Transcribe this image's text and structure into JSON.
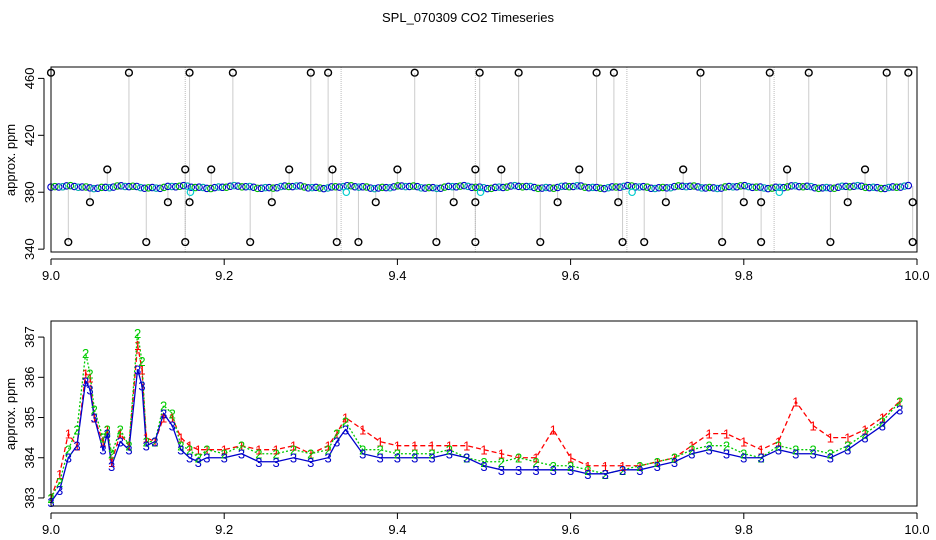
{
  "chart_data": [
    {
      "type": "scatter",
      "title": "SPL_070309  CO2 Timeseries",
      "xlabel": "",
      "ylabel": "approx. ppm",
      "xlim": [
        9.0,
        10.0
      ],
      "ylim": [
        338,
        468
      ],
      "xticks": [
        "9.0",
        "9.2",
        "9.4",
        "9.6",
        "9.8",
        "10.0"
      ],
      "xtick_values": [
        9.0,
        9.2,
        9.4,
        9.6,
        9.8,
        10.0
      ],
      "yticks": [
        "340",
        "380",
        "420",
        "460"
      ],
      "ytick_values": [
        340,
        380,
        420,
        460
      ],
      "grid": false,
      "baseline_level": 384,
      "gaps": [
        9.155,
        9.335,
        9.49,
        9.665,
        9.835
      ],
      "outliers": [
        {
          "x": 9.0,
          "y": 464
        },
        {
          "x": 9.02,
          "y": 345
        },
        {
          "x": 9.045,
          "y": 373
        },
        {
          "x": 9.065,
          "y": 396
        },
        {
          "x": 9.09,
          "y": 464
        },
        {
          "x": 9.11,
          "y": 345
        },
        {
          "x": 9.135,
          "y": 373
        },
        {
          "x": 9.155,
          "y": 396
        },
        {
          "x": 9.155,
          "y": 345
        },
        {
          "x": 9.16,
          "y": 464
        },
        {
          "x": 9.16,
          "y": 373
        },
        {
          "x": 9.185,
          "y": 396
        },
        {
          "x": 9.21,
          "y": 464
        },
        {
          "x": 9.23,
          "y": 345
        },
        {
          "x": 9.255,
          "y": 373
        },
        {
          "x": 9.275,
          "y": 396
        },
        {
          "x": 9.3,
          "y": 464
        },
        {
          "x": 9.32,
          "y": 464
        },
        {
          "x": 9.325,
          "y": 396
        },
        {
          "x": 9.33,
          "y": 345
        },
        {
          "x": 9.355,
          "y": 345
        },
        {
          "x": 9.375,
          "y": 373
        },
        {
          "x": 9.4,
          "y": 396
        },
        {
          "x": 9.42,
          "y": 464
        },
        {
          "x": 9.445,
          "y": 345
        },
        {
          "x": 9.465,
          "y": 373
        },
        {
          "x": 9.49,
          "y": 396
        },
        {
          "x": 9.49,
          "y": 373
        },
        {
          "x": 9.49,
          "y": 345
        },
        {
          "x": 9.495,
          "y": 464
        },
        {
          "x": 9.52,
          "y": 396
        },
        {
          "x": 9.54,
          "y": 464
        },
        {
          "x": 9.565,
          "y": 345
        },
        {
          "x": 9.585,
          "y": 373
        },
        {
          "x": 9.61,
          "y": 396
        },
        {
          "x": 9.63,
          "y": 464
        },
        {
          "x": 9.65,
          "y": 464
        },
        {
          "x": 9.655,
          "y": 373
        },
        {
          "x": 9.66,
          "y": 345
        },
        {
          "x": 9.685,
          "y": 345
        },
        {
          "x": 9.71,
          "y": 373
        },
        {
          "x": 9.73,
          "y": 396
        },
        {
          "x": 9.75,
          "y": 464
        },
        {
          "x": 9.775,
          "y": 345
        },
        {
          "x": 9.8,
          "y": 373
        },
        {
          "x": 9.82,
          "y": 373
        },
        {
          "x": 9.82,
          "y": 345
        },
        {
          "x": 9.83,
          "y": 464
        },
        {
          "x": 9.85,
          "y": 396
        },
        {
          "x": 9.875,
          "y": 464
        },
        {
          "x": 9.9,
          "y": 345
        },
        {
          "x": 9.92,
          "y": 373
        },
        {
          "x": 9.94,
          "y": 396
        },
        {
          "x": 9.965,
          "y": 464
        },
        {
          "x": 9.99,
          "y": 464
        },
        {
          "x": 9.995,
          "y": 373
        },
        {
          "x": 9.995,
          "y": 345
        }
      ]
    },
    {
      "type": "line",
      "title": "",
      "xlabel": "",
      "ylabel": "approx. ppm",
      "xlim": [
        9.0,
        10.0
      ],
      "ylim": [
        382.8,
        387.4
      ],
      "xticks": [
        "9.0",
        "9.2",
        "9.4",
        "9.6",
        "9.8",
        "10.0"
      ],
      "xtick_values": [
        9.0,
        9.2,
        9.4,
        9.6,
        9.8,
        10.0
      ],
      "yticks": [
        "383",
        "384",
        "385",
        "386",
        "387"
      ],
      "ytick_values": [
        383,
        384,
        385,
        386,
        387
      ],
      "grid": false,
      "x": [
        9.0,
        9.01,
        9.02,
        9.03,
        9.04,
        9.045,
        9.05,
        9.06,
        9.065,
        9.07,
        9.08,
        9.09,
        9.1,
        9.105,
        9.11,
        9.12,
        9.13,
        9.14,
        9.15,
        9.16,
        9.17,
        9.18,
        9.2,
        9.22,
        9.24,
        9.26,
        9.28,
        9.3,
        9.32,
        9.33,
        9.34,
        9.36,
        9.38,
        9.4,
        9.42,
        9.44,
        9.46,
        9.48,
        9.5,
        9.52,
        9.54,
        9.56,
        9.58,
        9.6,
        9.62,
        9.64,
        9.66,
        9.68,
        9.7,
        9.72,
        9.74,
        9.76,
        9.78,
        9.8,
        9.82,
        9.84,
        9.86,
        9.88,
        9.9,
        9.92,
        9.94,
        9.96,
        9.98
      ],
      "series": [
        {
          "name": "1",
          "color": "#ff0000",
          "values": [
            383.0,
            383.6,
            384.6,
            384.3,
            386.1,
            386.0,
            385.0,
            384.4,
            384.7,
            383.9,
            384.6,
            384.3,
            386.8,
            386.2,
            384.5,
            384.4,
            385.0,
            385.0,
            384.5,
            384.3,
            384.2,
            384.2,
            384.2,
            384.3,
            384.2,
            384.2,
            384.3,
            384.1,
            384.3,
            384.6,
            385.0,
            384.7,
            384.4,
            384.3,
            384.3,
            384.3,
            384.3,
            384.3,
            384.2,
            384.1,
            384.0,
            384.0,
            384.7,
            384.0,
            383.8,
            383.8,
            383.8,
            383.8,
            383.9,
            384.0,
            384.3,
            384.6,
            384.6,
            384.4,
            384.2,
            384.4,
            385.4,
            384.8,
            384.5,
            384.5,
            384.7,
            385.0,
            385.4
          ]
        },
        {
          "name": "2",
          "color": "#00cc00",
          "values": [
            383.0,
            383.4,
            384.2,
            384.7,
            386.6,
            386.1,
            385.2,
            384.5,
            384.7,
            384.1,
            384.7,
            384.3,
            387.1,
            386.4,
            384.4,
            384.4,
            385.3,
            385.1,
            384.3,
            384.2,
            384.0,
            384.2,
            384.1,
            384.3,
            384.1,
            384.1,
            384.2,
            384.1,
            384.2,
            384.6,
            384.9,
            384.2,
            384.2,
            384.1,
            384.1,
            384.1,
            384.2,
            384.0,
            383.9,
            383.9,
            384.0,
            383.9,
            383.8,
            383.8,
            383.7,
            383.6,
            383.7,
            383.8,
            383.9,
            384.0,
            384.2,
            384.3,
            384.3,
            384.1,
            384.0,
            384.3,
            384.2,
            384.2,
            384.1,
            384.3,
            384.6,
            384.9,
            385.4
          ]
        },
        {
          "name": "3",
          "color": "#0000cc",
          "values": [
            382.9,
            383.2,
            384.0,
            384.3,
            385.9,
            385.7,
            385.0,
            384.2,
            384.6,
            383.8,
            384.4,
            384.2,
            386.2,
            385.8,
            384.3,
            384.4,
            385.1,
            384.8,
            384.2,
            384.0,
            383.9,
            384.0,
            384.0,
            384.1,
            383.9,
            383.9,
            384.0,
            383.9,
            384.0,
            384.4,
            384.7,
            384.1,
            384.0,
            384.0,
            384.0,
            384.0,
            384.1,
            384.0,
            383.8,
            383.7,
            383.7,
            383.7,
            383.7,
            383.7,
            383.6,
            383.6,
            383.7,
            383.7,
            383.8,
            383.9,
            384.1,
            384.2,
            384.1,
            384.0,
            384.0,
            384.2,
            384.1,
            384.1,
            384.0,
            384.2,
            384.5,
            384.8,
            385.2
          ]
        }
      ]
    }
  ]
}
